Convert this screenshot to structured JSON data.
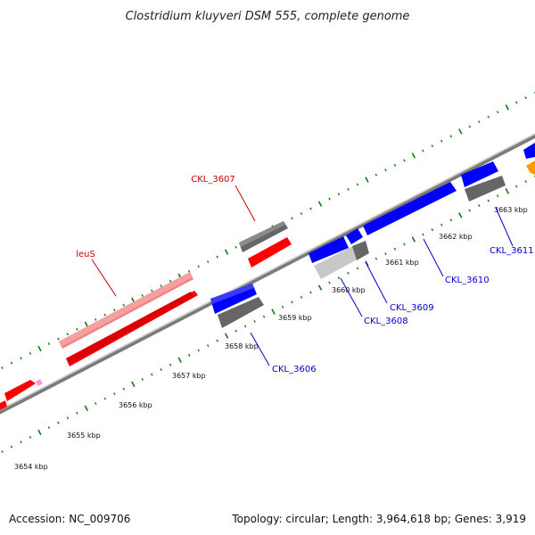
{
  "title": "Clostridium kluyveri DSM 555, complete genome",
  "footer": {
    "accession": "Accession: NC_009706",
    "summary": "Topology: circular; Length: 3,964,618 bp; Genes: 3,919"
  },
  "colors": {
    "cds_forward": "#ff0000",
    "cds_forward_named": "#f08080",
    "cds_reverse": "#0000ff",
    "cds_gray": "#707070",
    "cds_lightgray": "#c8c8c8",
    "other_orange": "#ff9900",
    "other_pink": "#ff99cc",
    "label_red": "#cc0000",
    "label_blue": "#0000cc",
    "tick_green": "#117711"
  },
  "scale_labels": [
    {
      "text": "3654 kbp"
    },
    {
      "text": "3655 kbp"
    },
    {
      "text": "3656 kbp"
    },
    {
      "text": "3657 kbp"
    },
    {
      "text": "3658 kbp"
    },
    {
      "text": "3659 kbp"
    },
    {
      "text": "3660 kbp"
    },
    {
      "text": "3661 kbp"
    },
    {
      "text": "3662 kbp"
    },
    {
      "text": "3663 kbp"
    }
  ],
  "gene_labels": [
    {
      "text": "CKL_3607",
      "color": "label_red"
    },
    {
      "text": "leuS",
      "color": "label_red"
    },
    {
      "text": "CKL_3606",
      "color": "label_blue"
    },
    {
      "text": "CKL_3608",
      "color": "label_blue"
    },
    {
      "text": "CKL_3609",
      "color": "label_blue"
    },
    {
      "text": "CKL_3610",
      "color": "label_blue"
    },
    {
      "text": "CKL_3611",
      "color": "label_blue"
    }
  ]
}
